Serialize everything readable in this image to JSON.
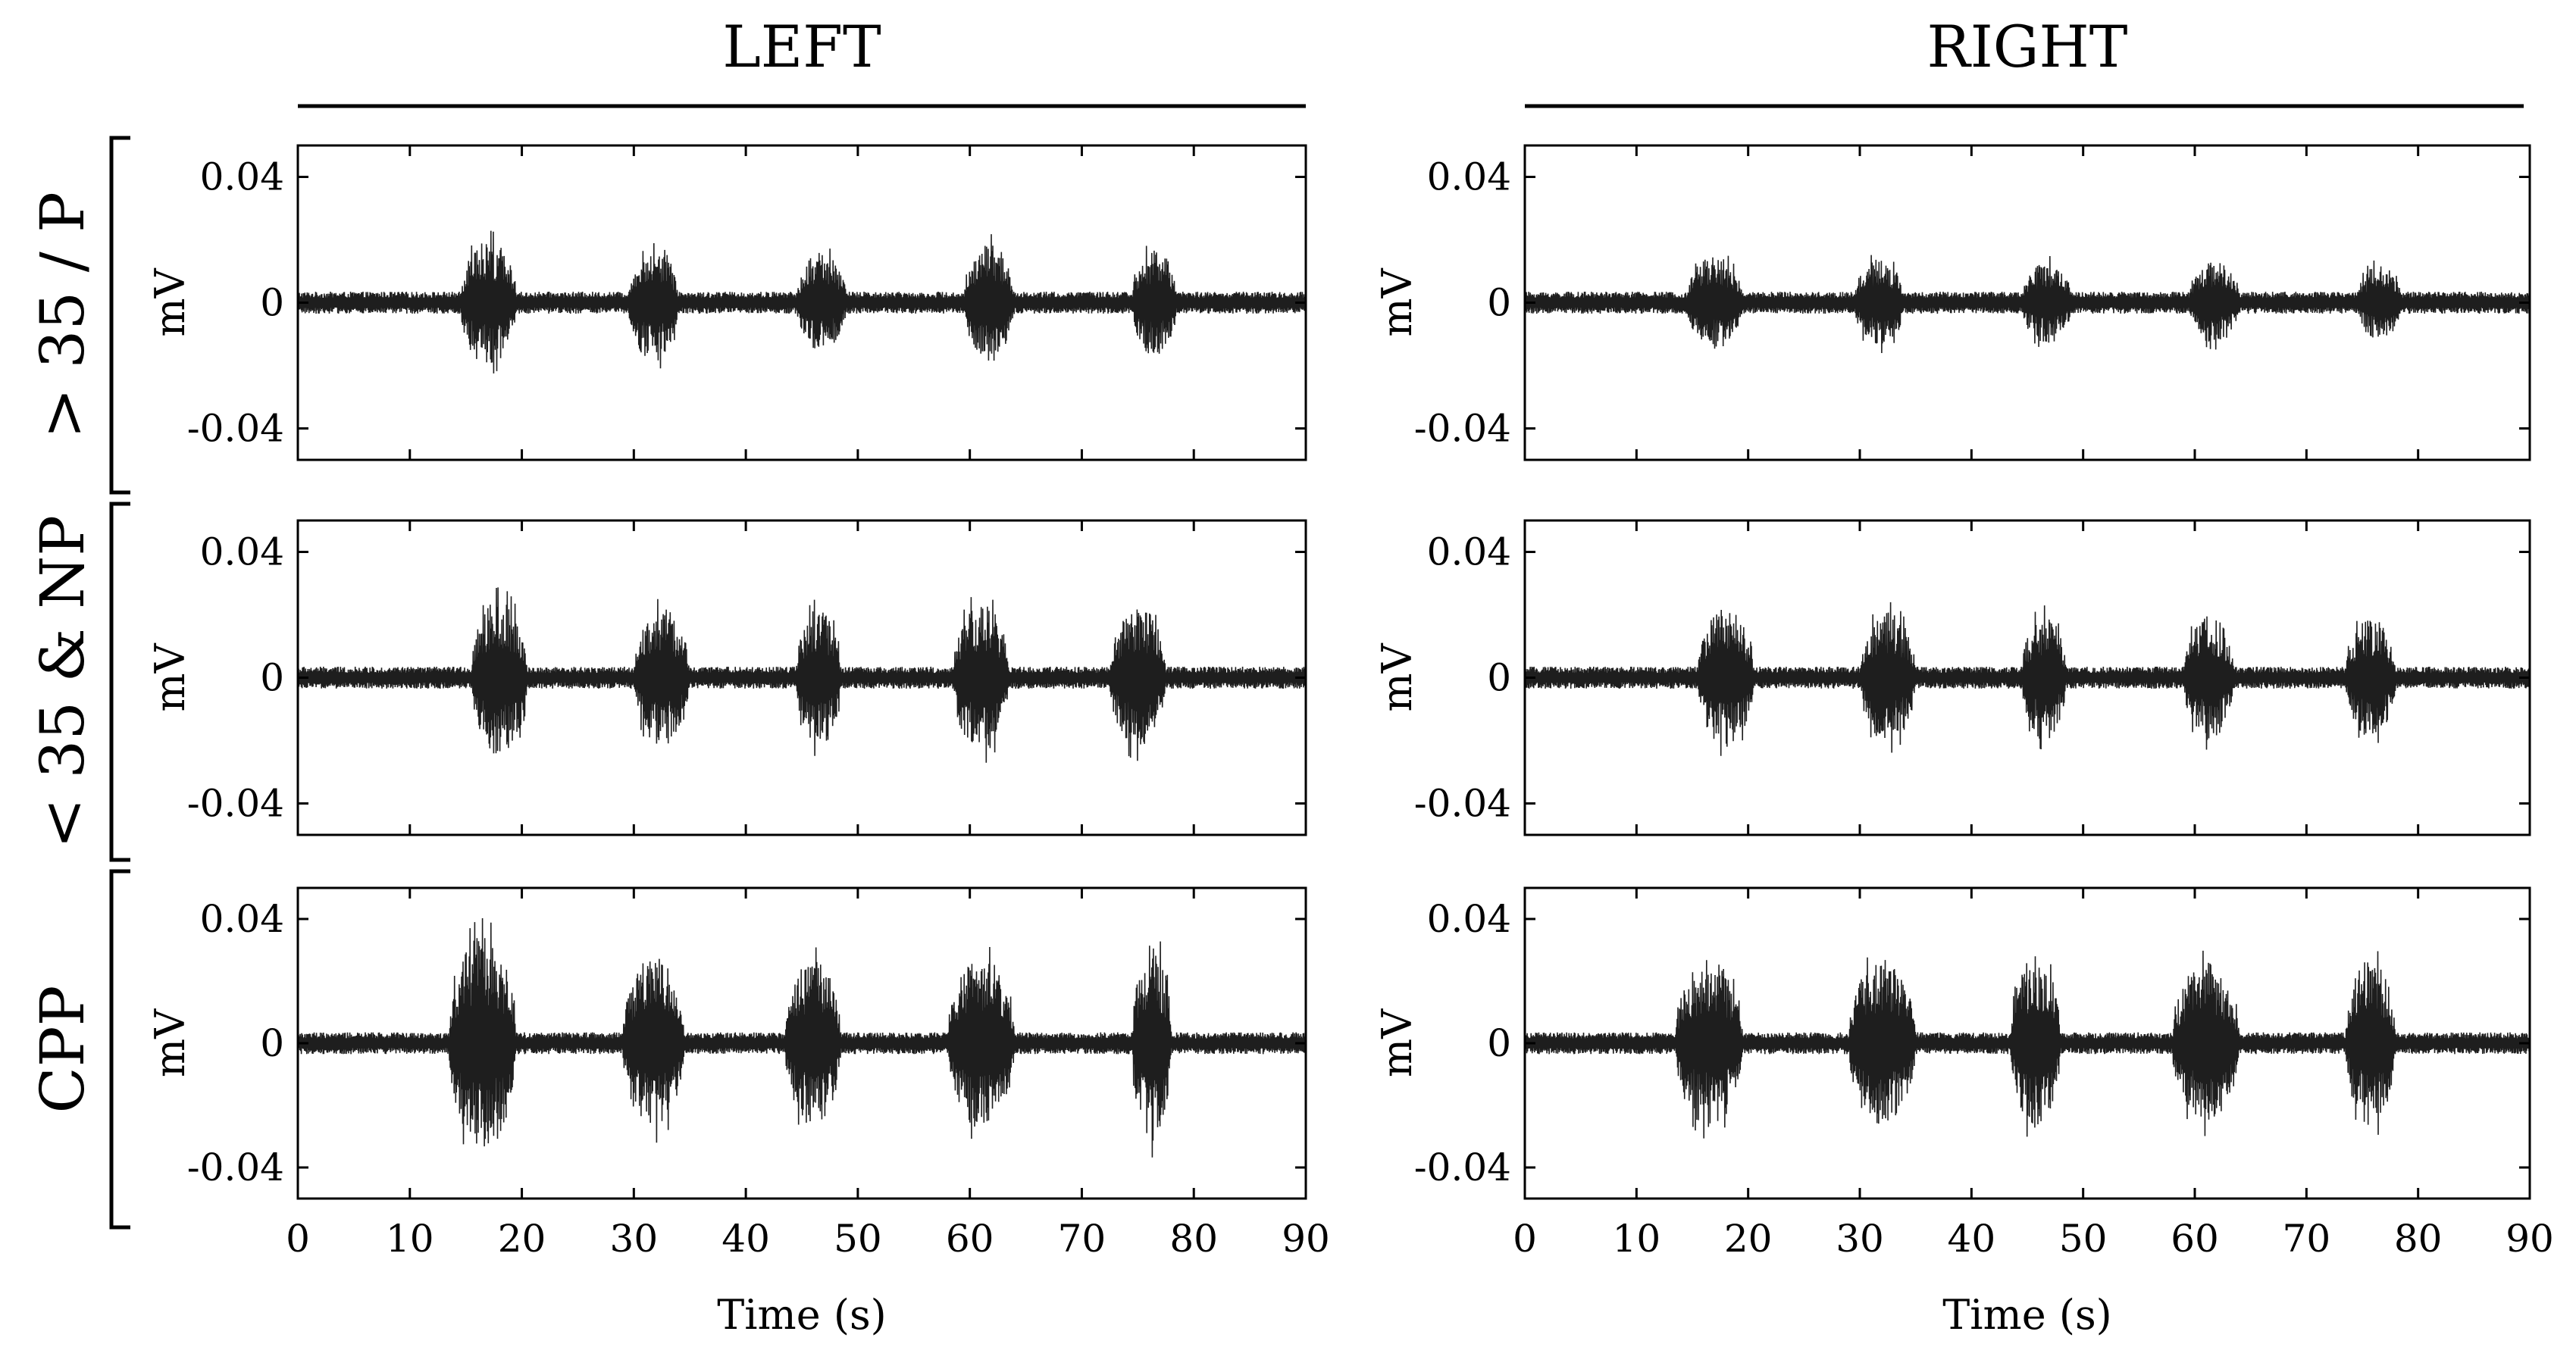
{
  "columns": [
    "LEFT",
    "RIGHT"
  ],
  "rows": [
    "> 35 / P",
    "< 35 & NP",
    "CPP"
  ],
  "xlabel": "Time (s)",
  "ylabel": "mV",
  "chart_data": {
    "type": "line",
    "description_level": "emg-like signal grid",
    "xlim": [
      0,
      90
    ],
    "ylim": [
      -0.05,
      0.05
    ],
    "xticks": [
      0,
      10,
      20,
      30,
      40,
      50,
      60,
      70,
      80,
      90
    ],
    "yticks": [
      0.04,
      0,
      -0.04
    ],
    "ytick_labels": [
      "0.04",
      "0",
      "-0.04"
    ],
    "xtick_labels": [
      "0",
      "10",
      "20",
      "30",
      "40",
      "50",
      "60",
      "70",
      "80",
      "90"
    ],
    "baseline_amplitude": 0.0025,
    "panels": [
      {
        "row": 0,
        "col": 0,
        "bursts": [
          {
            "start": 14.5,
            "end": 19.5,
            "amp": 0.02
          },
          {
            "start": 29.5,
            "end": 34.0,
            "amp": 0.019
          },
          {
            "start": 44.5,
            "end": 49.0,
            "amp": 0.016
          },
          {
            "start": 59.5,
            "end": 64.0,
            "amp": 0.019
          },
          {
            "start": 74.5,
            "end": 78.5,
            "amp": 0.017
          }
        ]
      },
      {
        "row": 0,
        "col": 1,
        "bursts": [
          {
            "start": 14.5,
            "end": 19.5,
            "amp": 0.015
          },
          {
            "start": 29.5,
            "end": 34.0,
            "amp": 0.014
          },
          {
            "start": 44.5,
            "end": 49.0,
            "amp": 0.013
          },
          {
            "start": 59.5,
            "end": 64.0,
            "amp": 0.013
          },
          {
            "start": 74.5,
            "end": 78.5,
            "amp": 0.012
          }
        ]
      },
      {
        "row": 1,
        "col": 0,
        "bursts": [
          {
            "start": 15.5,
            "end": 20.5,
            "amp": 0.025
          },
          {
            "start": 30.0,
            "end": 35.0,
            "amp": 0.022
          },
          {
            "start": 44.5,
            "end": 48.5,
            "amp": 0.022
          },
          {
            "start": 58.5,
            "end": 63.5,
            "amp": 0.024
          },
          {
            "start": 72.5,
            "end": 77.5,
            "amp": 0.023
          }
        ]
      },
      {
        "row": 1,
        "col": 1,
        "bursts": [
          {
            "start": 15.5,
            "end": 20.5,
            "amp": 0.022
          },
          {
            "start": 30.0,
            "end": 35.0,
            "amp": 0.021
          },
          {
            "start": 44.5,
            "end": 48.5,
            "amp": 0.02
          },
          {
            "start": 59.0,
            "end": 63.5,
            "amp": 0.02
          },
          {
            "start": 73.5,
            "end": 78.0,
            "amp": 0.019
          }
        ]
      },
      {
        "row": 2,
        "col": 0,
        "bursts": [
          {
            "start": 13.5,
            "end": 19.5,
            "amp": 0.035
          },
          {
            "start": 29.0,
            "end": 34.5,
            "amp": 0.028
          },
          {
            "start": 43.5,
            "end": 48.5,
            "amp": 0.027
          },
          {
            "start": 58.0,
            "end": 64.0,
            "amp": 0.028
          },
          {
            "start": 74.5,
            "end": 78.0,
            "amp": 0.032
          }
        ]
      },
      {
        "row": 2,
        "col": 1,
        "bursts": [
          {
            "start": 13.5,
            "end": 19.5,
            "amp": 0.027
          },
          {
            "start": 29.0,
            "end": 35.0,
            "amp": 0.027
          },
          {
            "start": 43.5,
            "end": 48.0,
            "amp": 0.028
          },
          {
            "start": 58.0,
            "end": 64.0,
            "amp": 0.026
          },
          {
            "start": 73.5,
            "end": 78.0,
            "amp": 0.027
          }
        ]
      }
    ]
  }
}
